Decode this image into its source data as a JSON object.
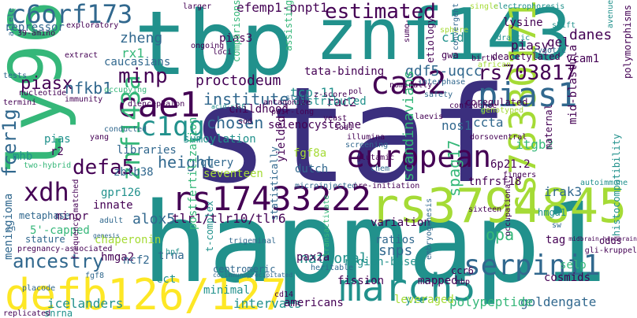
{
  "palette": {
    "dark_purple": "#440154",
    "indigo": "#3b2f7e",
    "blue": "#31688e",
    "teal": "#21918c",
    "green": "#35b779",
    "lime": "#a5db36",
    "yellow": "#fde725"
  },
  "words": [
    {
      "id": "tbp",
      "text": "tbp"
    },
    {
      "id": "znf143",
      "text": "znf143"
    },
    {
      "id": "staf",
      "text": "staf"
    },
    {
      "id": "hapmap1",
      "text": "hapmap1"
    },
    {
      "id": "ly96",
      "text": "ly96"
    },
    {
      "id": "rs78380171",
      "text": "rs78380171"
    },
    {
      "id": "rs3794845",
      "text": "rs3794845"
    },
    {
      "id": "rs17433222",
      "text": "rs17433222"
    },
    {
      "id": "defb126_127",
      "text": "defb126/127"
    },
    {
      "id": "march5",
      "text": "march5"
    },
    {
      "id": "european",
      "text": "european"
    },
    {
      "id": "cae1",
      "text": "cae1"
    },
    {
      "id": "cae2",
      "text": "cae2"
    },
    {
      "id": "pias1",
      "text": "pias1"
    },
    {
      "id": "c6orf173",
      "text": "c6orf173"
    },
    {
      "id": "estimated",
      "text": "estimated"
    },
    {
      "id": "serpini1",
      "text": "serpini1"
    },
    {
      "id": "znf143a",
      "text": "znf143a"
    },
    {
      "id": "c1qg",
      "text": "c1qg"
    },
    {
      "id": "xdh",
      "text": "xdh"
    },
    {
      "id": "rs703817",
      "text": "rs703817"
    },
    {
      "id": "defa5",
      "text": "defa5"
    },
    {
      "id": "minp",
      "text": "minp"
    },
    {
      "id": "efemp1_pnpt1",
      "text": "efemp1-pnpt1"
    },
    {
      "id": "fcer1g",
      "text": "fcer1g"
    },
    {
      "id": "ancestry",
      "text": "ancestry"
    },
    {
      "id": "zheng",
      "text": "zheng"
    },
    {
      "id": "institute",
      "text": "institute"
    },
    {
      "id": "piasx",
      "text": "piasx"
    },
    {
      "id": "nfkb1",
      "text": "nfkb1"
    },
    {
      "id": "proctodeum",
      "text": "proctodeum"
    },
    {
      "id": "gdf5_uqcc",
      "text": "gdf5-uqcc"
    },
    {
      "id": "tcp_11",
      "text": "tcp-11"
    },
    {
      "id": "rac2",
      "text": "rac2"
    },
    {
      "id": "chosen",
      "text": "chosen"
    },
    {
      "id": "height",
      "text": "height"
    },
    {
      "id": "alox5",
      "text": "alox5"
    },
    {
      "id": "tlr_combo",
      "text": "tlr1/tlr10/tlr6"
    },
    {
      "id": "danes",
      "text": "danes"
    },
    {
      "id": "rx1",
      "text": "rx1"
    },
    {
      "id": "c1d",
      "text": "c1d"
    },
    {
      "id": "ccta",
      "text": "ccta"
    },
    {
      "id": "itgb2",
      "text": "itgb2"
    },
    {
      "id": "nos1",
      "text": "nos1"
    },
    {
      "id": "opa",
      "text": "opa"
    },
    {
      "id": "spag17",
      "text": "spag17"
    },
    {
      "id": "scandinavians",
      "text": "scandinavians"
    },
    {
      "id": "snps",
      "text": "snps"
    },
    {
      "id": "national",
      "text": "national"
    },
    {
      "id": "region_based",
      "text": "region-based"
    },
    {
      "id": "selp",
      "text": "selp"
    },
    {
      "id": "cosmids",
      "text": "cosmids"
    },
    {
      "id": "goldengate",
      "text": "goldengate"
    },
    {
      "id": "polypeptide",
      "text": "polypeptide"
    },
    {
      "id": "y_c",
      "text": "y.c"
    },
    {
      "id": "intervals",
      "text": "intervals"
    },
    {
      "id": "americans",
      "text": "americans"
    },
    {
      "id": "icelanders",
      "text": "icelanders"
    },
    {
      "id": "irak3",
      "text": "irak3"
    },
    {
      "id": "mid_blastula",
      "text": "mid-blastula"
    },
    {
      "id": "tnfrsf18",
      "text": "tnfrsf18"
    },
    {
      "id": "6p21_2",
      "text": "6p21.2"
    },
    {
      "id": "pias3",
      "text": "pias3"
    },
    {
      "id": "lysine",
      "text": "lysine"
    },
    {
      "id": "piasy",
      "text": "piasy"
    },
    {
      "id": "gel",
      "text": "gel"
    },
    {
      "id": "vcam1",
      "text": "vcam1"
    },
    {
      "id": "repressor",
      "text": "repressor"
    },
    {
      "id": "caucasians",
      "text": "caucasians"
    },
    {
      "id": "distributed",
      "text": "distributed"
    },
    {
      "id": "tata_binding",
      "text": "tata-binding"
    },
    {
      "id": "selenocysteine",
      "text": "selenocysteine"
    },
    {
      "id": "seventeen",
      "text": "seventeen"
    },
    {
      "id": "query",
      "text": "query"
    },
    {
      "id": "sumoylation",
      "text": "sumoylation"
    },
    {
      "id": "libraries",
      "text": "libraries"
    },
    {
      "id": "childhood",
      "text": "childhood"
    },
    {
      "id": "fgf8a",
      "text": "fgf8a"
    },
    {
      "id": "dutch",
      "text": "dutch"
    },
    {
      "id": "zbtb38",
      "text": "zbtb38"
    },
    {
      "id": "gpr126",
      "text": "gpr126"
    },
    {
      "id": "innate",
      "text": "innate"
    },
    {
      "id": "minor",
      "text": "minor"
    },
    {
      "id": "pias",
      "text": "pias"
    },
    {
      "id": "r2",
      "text": "r2"
    },
    {
      "id": "mhb",
      "text": "mhb"
    },
    {
      "id": "five_capped",
      "text": "5'-capped"
    },
    {
      "id": "chaperonin",
      "text": "chaperonin"
    },
    {
      "id": "hmga2",
      "text": "hmga2"
    },
    {
      "id": "ncf2",
      "text": "ncf2"
    },
    {
      "id": "trna",
      "text": "trna"
    },
    {
      "id": "cct",
      "text": "cct"
    },
    {
      "id": "minimal",
      "text": "minimal"
    },
    {
      "id": "snrna",
      "text": "snrna"
    },
    {
      "id": "meningioma",
      "text": "meningioma"
    },
    {
      "id": "postfertilization",
      "text": "postfertilization"
    },
    {
      "id": "t_complex",
      "text": "t-complex"
    },
    {
      "id": "statistically",
      "text": "statistically"
    },
    {
      "id": "pax2a",
      "text": "pax2a"
    },
    {
      "id": "fission",
      "text": "fission"
    },
    {
      "id": "ratios",
      "text": "ratios"
    },
    {
      "id": "variation",
      "text": "variation"
    },
    {
      "id": "leveraged",
      "text": "leveraged"
    },
    {
      "id": "mapped",
      "text": "mapped"
    },
    {
      "id": "tag",
      "text": "tag"
    },
    {
      "id": "odds",
      "text": "odds"
    },
    {
      "id": "hmga1",
      "text": "hmga1"
    },
    {
      "id": "yielded",
      "text": "yielded"
    },
    {
      "id": "ccr6",
      "text": "ccr6"
    },
    {
      "id": "cd14",
      "text": "cd14"
    },
    {
      "id": "gwa",
      "text": "gwa"
    },
    {
      "id": "etiology",
      "text": "etiology"
    },
    {
      "id": "assisting",
      "text": "assisting"
    },
    {
      "id": "comparisons",
      "text": "comparisons"
    },
    {
      "id": "deacetylated",
      "text": "deacetylated"
    },
    {
      "id": "coregulated",
      "text": "coregulated"
    },
    {
      "id": "maternal",
      "text": "maternal"
    },
    {
      "id": "fingers",
      "text": "fingers"
    },
    {
      "id": "metaphase",
      "text": "metaphase"
    },
    {
      "id": "stature",
      "text": "stature"
    },
    {
      "id": "trigeminal",
      "text": "trigeminal"
    },
    {
      "id": "centromeric",
      "text": "centromeric"
    },
    {
      "id": "histocompatibility",
      "text": "histocompatibility"
    },
    {
      "id": "polymorphisms",
      "text": "polymorphisms"
    },
    {
      "id": "frequency_matched",
      "text": "frequency-matched"
    },
    {
      "id": "electrophoresis",
      "text": "electrophoresis"
    },
    {
      "id": "exploratory",
      "text": "exploratory"
    },
    {
      "id": "larger",
      "text": "larger"
    },
    {
      "id": "ongoing",
      "text": "ongoing"
    },
    {
      "id": "loci",
      "text": "loci"
    },
    {
      "id": "sphere",
      "text": "sphere"
    },
    {
      "id": "single",
      "text": "single"
    },
    {
      "id": "drastic",
      "text": "drastic"
    },
    {
      "id": "sumo_1",
      "text": "sumo-1"
    },
    {
      "id": "convergent",
      "text": "convergent"
    },
    {
      "id": "birth",
      "text": "birth"
    },
    {
      "id": "african",
      "text": "african"
    },
    {
      "id": "zygotic",
      "text": "zygotic"
    },
    {
      "id": "avenue",
      "text": "avenue"
    },
    {
      "id": "shift",
      "text": "shift"
    },
    {
      "id": "amino_39",
      "text": "39-amino"
    },
    {
      "id": "allele",
      "text": "allele"
    },
    {
      "id": "tests",
      "text": "tests"
    },
    {
      "id": "extract",
      "text": "extract"
    },
    {
      "id": "nucleotide",
      "text": "nucleotide"
    },
    {
      "id": "termini",
      "text": "termini"
    },
    {
      "id": "immunity",
      "text": "immunity"
    },
    {
      "id": "occupying",
      "text": "occupying"
    },
    {
      "id": "diencephalon",
      "text": "diencephalon"
    },
    {
      "id": "antagonize",
      "text": "antagonize"
    },
    {
      "id": "pair_long",
      "text": "pair-long"
    },
    {
      "id": "pol",
      "text": "pol"
    },
    {
      "id": "nominally",
      "text": "nominally"
    },
    {
      "id": "interphase",
      "text": "interphase"
    },
    {
      "id": "safety",
      "text": "safety"
    },
    {
      "id": "genotyped",
      "text": "genotyped"
    },
    {
      "id": "acid_rich",
      "text": "acid-rich"
    },
    {
      "id": "stalk",
      "text": "stalk"
    },
    {
      "id": "z_score",
      "text": "z-score"
    },
    {
      "id": "sod",
      "text": "sod"
    },
    {
      "id": "yeast",
      "text": "yeast"
    },
    {
      "id": "laevis",
      "text": "laevis"
    },
    {
      "id": "confidence",
      "text": "confidence"
    },
    {
      "id": "conducted",
      "text": "conducted"
    },
    {
      "id": "yang",
      "text": "yang"
    },
    {
      "id": "two_hybrid",
      "text": "two-hybrid"
    },
    {
      "id": "sod1",
      "text": "sod1"
    },
    {
      "id": "illumina",
      "text": "illumina"
    },
    {
      "id": "screening",
      "text": "screening"
    },
    {
      "id": "dorsoventral",
      "text": "dorsoventral"
    },
    {
      "id": "glutamic",
      "text": "glutamic"
    },
    {
      "id": "chem",
      "text": "chem"
    },
    {
      "id": "microinjected",
      "text": "microinjected"
    },
    {
      "id": "pre_initiation",
      "text": "pre-initiation"
    },
    {
      "id": "sixteen",
      "text": "sixteen"
    },
    {
      "id": "zn",
      "text": "zn"
    },
    {
      "id": "adult",
      "text": "adult"
    },
    {
      "id": "genesis",
      "text": "genesis"
    },
    {
      "id": "pregnancy_associated",
      "text": "pregnancy-associated"
    },
    {
      "id": "placode",
      "text": "placode"
    },
    {
      "id": "fgf8",
      "text": "fgf8"
    },
    {
      "id": "hpf",
      "text": "hpf"
    },
    {
      "id": "replicated",
      "text": "replicated"
    },
    {
      "id": "co_immunoprecipitated",
      "text": "co-immunoprecipitated"
    },
    {
      "id": "heritable",
      "text": "heritable"
    },
    {
      "id": "transactivate",
      "text": "transactivate"
    },
    {
      "id": "occupational",
      "text": "occupational"
    },
    {
      "id": "mbp",
      "text": "mbp"
    },
    {
      "id": "sw",
      "text": "sw"
    },
    {
      "id": "midbrain_hindbrain",
      "text": "midbrain-hindbrain"
    },
    {
      "id": "gli_kruppel",
      "text": "gli-kruppel"
    },
    {
      "id": "autoimmune",
      "text": "autoimmune"
    },
    {
      "id": "embryogenesis",
      "text": "embryogenesis"
    }
  ]
}
